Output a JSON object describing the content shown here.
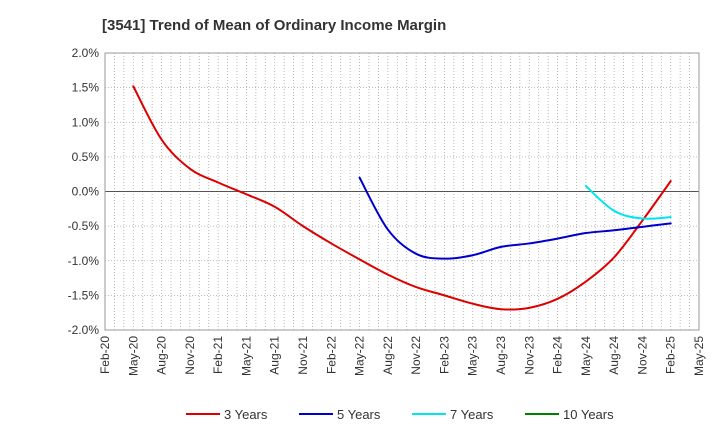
{
  "chart_data": {
    "type": "line",
    "title": "[3541]  Trend of Mean of Ordinary Income Margin",
    "xlabel": "",
    "ylabel": "",
    "x_ticks": [
      "Feb-20",
      "May-20",
      "Aug-20",
      "Nov-20",
      "Feb-21",
      "May-21",
      "Aug-21",
      "Nov-21",
      "Feb-22",
      "May-22",
      "Aug-22",
      "Nov-22",
      "Feb-23",
      "May-23",
      "Aug-23",
      "Nov-23",
      "Feb-24",
      "May-24",
      "Aug-24",
      "Nov-24",
      "Feb-25",
      "May-25"
    ],
    "y_ticks": [
      "2.0%",
      "1.5%",
      "1.0%",
      "0.5%",
      "0.0%",
      "-0.5%",
      "-1.0%",
      "-1.5%",
      "-2.0%"
    ],
    "ylim": [
      -2.0,
      2.0
    ],
    "grid": true,
    "legend_position": "bottom",
    "series": [
      {
        "name": "3 Years",
        "color": "#dd0000",
        "x": [
          "May-20",
          "Aug-20",
          "Nov-20",
          "Feb-21",
          "May-21",
          "Aug-21",
          "Nov-21",
          "Feb-22",
          "May-22",
          "Aug-22",
          "Nov-22",
          "Feb-23",
          "May-23",
          "Aug-23",
          "Nov-23",
          "Feb-24",
          "May-24",
          "Aug-24",
          "Nov-24",
          "Feb-25"
        ],
        "values": [
          1.52,
          0.75,
          0.33,
          0.13,
          -0.04,
          -0.22,
          -0.5,
          -0.75,
          -0.98,
          -1.2,
          -1.38,
          -1.5,
          -1.62,
          -1.7,
          -1.68,
          -1.55,
          -1.3,
          -0.95,
          -0.42,
          0.15
        ]
      },
      {
        "name": "5 Years",
        "color": "#0000cc",
        "x": [
          "May-22",
          "Aug-22",
          "Nov-22",
          "Feb-23",
          "May-23",
          "Aug-23",
          "Nov-23",
          "Feb-24",
          "May-24",
          "Aug-24",
          "Nov-24",
          "Feb-25"
        ],
        "values": [
          0.2,
          -0.55,
          -0.9,
          -0.97,
          -0.92,
          -0.8,
          -0.75,
          -0.68,
          -0.6,
          -0.56,
          -0.51,
          -0.46
        ]
      },
      {
        "name": "7 Years",
        "color": "#00e5ee",
        "x": [
          "May-24",
          "Aug-24",
          "Nov-24",
          "Feb-25"
        ],
        "values": [
          0.08,
          -0.28,
          -0.39,
          -0.37
        ]
      },
      {
        "name": "10 Years",
        "color": "#008000",
        "x": [],
        "values": []
      }
    ]
  }
}
